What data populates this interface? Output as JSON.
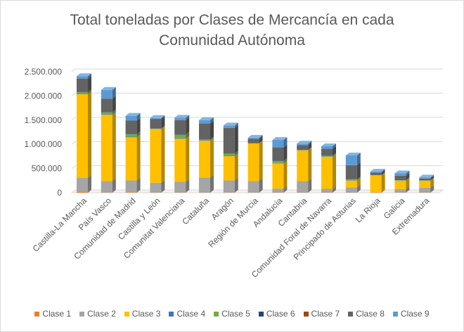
{
  "chart_data": {
    "type": "bar",
    "stacked": true,
    "three_d": true,
    "title_lines": [
      "Total toneladas por Clases de Mercancía en cada",
      "Comunidad Autónoma"
    ],
    "ylim": [
      0,
      2500000
    ],
    "yticks": [
      {
        "value": 0,
        "label": "0"
      },
      {
        "value": 500000,
        "label": "500.000"
      },
      {
        "value": 1000000,
        "label": "1.000.000"
      },
      {
        "value": 1500000,
        "label": "1.500.000"
      },
      {
        "value": 2000000,
        "label": "2.000.000"
      },
      {
        "value": 2500000,
        "label": "2.500.000"
      }
    ],
    "grid": true,
    "legend_position": "bottom",
    "categories": [
      "Castilla-La Mancha",
      "País Vasco",
      "Comunidad de Madrid",
      "Castilla y León",
      "Comunitat Valenciana",
      "Cataluña",
      "Aragón",
      "Región de Murcia",
      "Andalucía",
      "Cantabria",
      "Comunidad Foral de Navarra",
      "Principado de Asturias",
      "La Rioja",
      "Galicia",
      "Extremadura"
    ],
    "series": [
      {
        "name": "Clase 1",
        "color": "#ed7d31",
        "values": [
          15000,
          5000,
          10000,
          5000,
          5000,
          5000,
          5000,
          5000,
          5000,
          5000,
          5000,
          5000,
          10000,
          5000,
          5000
        ]
      },
      {
        "name": "Clase 2",
        "color": "#a5a5a5",
        "values": [
          290000,
          235000,
          245000,
          200000,
          220000,
          310000,
          250000,
          240000,
          80000,
          235000,
          75000,
          105000,
          0,
          70000,
          100000
        ]
      },
      {
        "name": "Clase 3",
        "color": "#ffc000",
        "values": [
          1730000,
          1370000,
          890000,
          1110000,
          890000,
          760000,
          500000,
          770000,
          520000,
          630000,
          660000,
          140000,
          350000,
          170000,
          145000
        ]
      },
      {
        "name": "Clase 4",
        "color": "#4472c4",
        "values": [
          10000,
          10000,
          10000,
          5000,
          10000,
          10000,
          10000,
          5000,
          10000,
          5000,
          5000,
          5000,
          0,
          5000,
          0
        ]
      },
      {
        "name": "Clase 5",
        "color": "#70ad47",
        "values": [
          30000,
          40000,
          50000,
          5000,
          70000,
          10000,
          40000,
          5000,
          40000,
          10000,
          20000,
          20000,
          5000,
          10000,
          5000
        ]
      },
      {
        "name": "Clase 6",
        "color": "#264478",
        "values": [
          5000,
          5000,
          5000,
          0,
          5000,
          5000,
          5000,
          0,
          5000,
          0,
          5000,
          5000,
          0,
          0,
          0
        ]
      },
      {
        "name": "Clase 7",
        "color": "#9e480e",
        "values": [
          0,
          0,
          0,
          0,
          0,
          0,
          0,
          0,
          0,
          0,
          0,
          0,
          0,
          0,
          0
        ]
      },
      {
        "name": "Clase 8",
        "color": "#636363",
        "values": [
          280000,
          280000,
          280000,
          200000,
          300000,
          330000,
          530000,
          90000,
          280000,
          100000,
          140000,
          290000,
          50000,
          90000,
          40000
        ]
      },
      {
        "name": "Clase 9",
        "color": "#5b9bd5",
        "values": [
          50000,
          180000,
          100000,
          20000,
          50000,
          70000,
          50000,
          20000,
          150000,
          30000,
          50000,
          200000,
          20000,
          50000,
          20000
        ]
      }
    ]
  }
}
